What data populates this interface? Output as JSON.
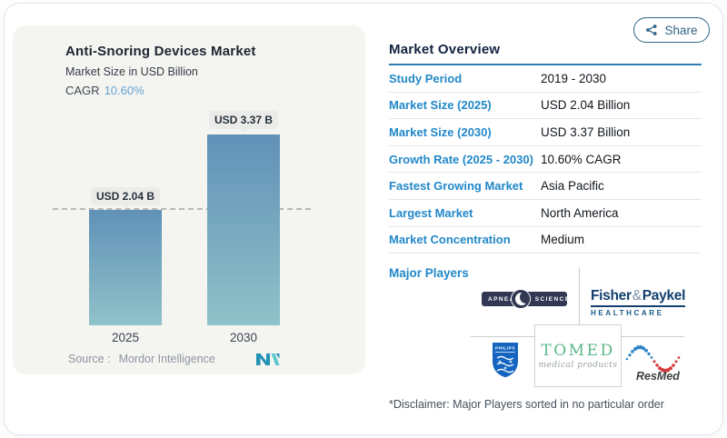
{
  "window": {
    "share_label": "Share"
  },
  "chart": {
    "title": "Anti-Snoring Devices Market",
    "subtitle": "Market Size in USD Billion",
    "cagr_label": "CAGR",
    "cagr_value": "10.60%",
    "source_prefix": "Source :",
    "source_name": "Mordor Intelligence"
  },
  "chart_data": {
    "type": "bar",
    "title": "Anti-Snoring Devices Market",
    "subtitle": "Market Size in USD Billion",
    "categories": [
      "2025",
      "2030"
    ],
    "values": [
      2.04,
      3.37
    ],
    "value_labels": [
      "USD 2.04 B",
      "USD 3.37 B"
    ],
    "unit": "USD Billion",
    "cagr_percent": 10.6,
    "reference_line_at": 2.04,
    "ylim": [
      0,
      3.37
    ],
    "grid": false,
    "bar_color_top": "#6191b8",
    "bar_color_bottom": "#8fc2c9"
  },
  "overview": {
    "title": "Market Overview",
    "rows": [
      {
        "label": "Study Period",
        "value": "2019 - 2030"
      },
      {
        "label": "Market Size (2025)",
        "value": "USD 2.04 Billion"
      },
      {
        "label": "Market Size (2030)",
        "value": "USD 3.37 Billion"
      },
      {
        "label": "Growth Rate (2025 - 2030)",
        "value": "10.60% CAGR"
      },
      {
        "label": "Fastest Growing Market",
        "value": "Asia Pacific"
      },
      {
        "label": "Largest Market",
        "value": "North America"
      },
      {
        "label": "Market Concentration",
        "value": "Medium"
      }
    ],
    "major_players_label": "Major Players",
    "major_players": [
      "Apnea Sciences",
      "Fisher & Paykel Healthcare",
      "Philips",
      "Tomed Medical Products",
      "ResMed"
    ],
    "disclaimer": "*Disclaimer: Major Players sorted in no particular order"
  },
  "logos": {
    "apnea": {
      "left": "APNEA",
      "right": "SCIENCES"
    },
    "fisher_paykel": {
      "part1": "Fisher",
      "amp": "&",
      "part2": "Paykel",
      "line2": "HEALTHCARE"
    },
    "philips": {
      "text": "PHILIPS"
    },
    "tomed": {
      "name": "TOMED",
      "tagline": "medical products"
    },
    "resmed": {
      "text": "ResMed"
    }
  },
  "colors": {
    "panel_bg": "#f4f4f1",
    "label_blue": "#2188c9",
    "header_navy": "#13233f",
    "underline_blue": "#2f7cb1",
    "cagr_blue": "#68a4d6",
    "pill_bg": "#ebecea",
    "share_teal": "#2f6486"
  }
}
